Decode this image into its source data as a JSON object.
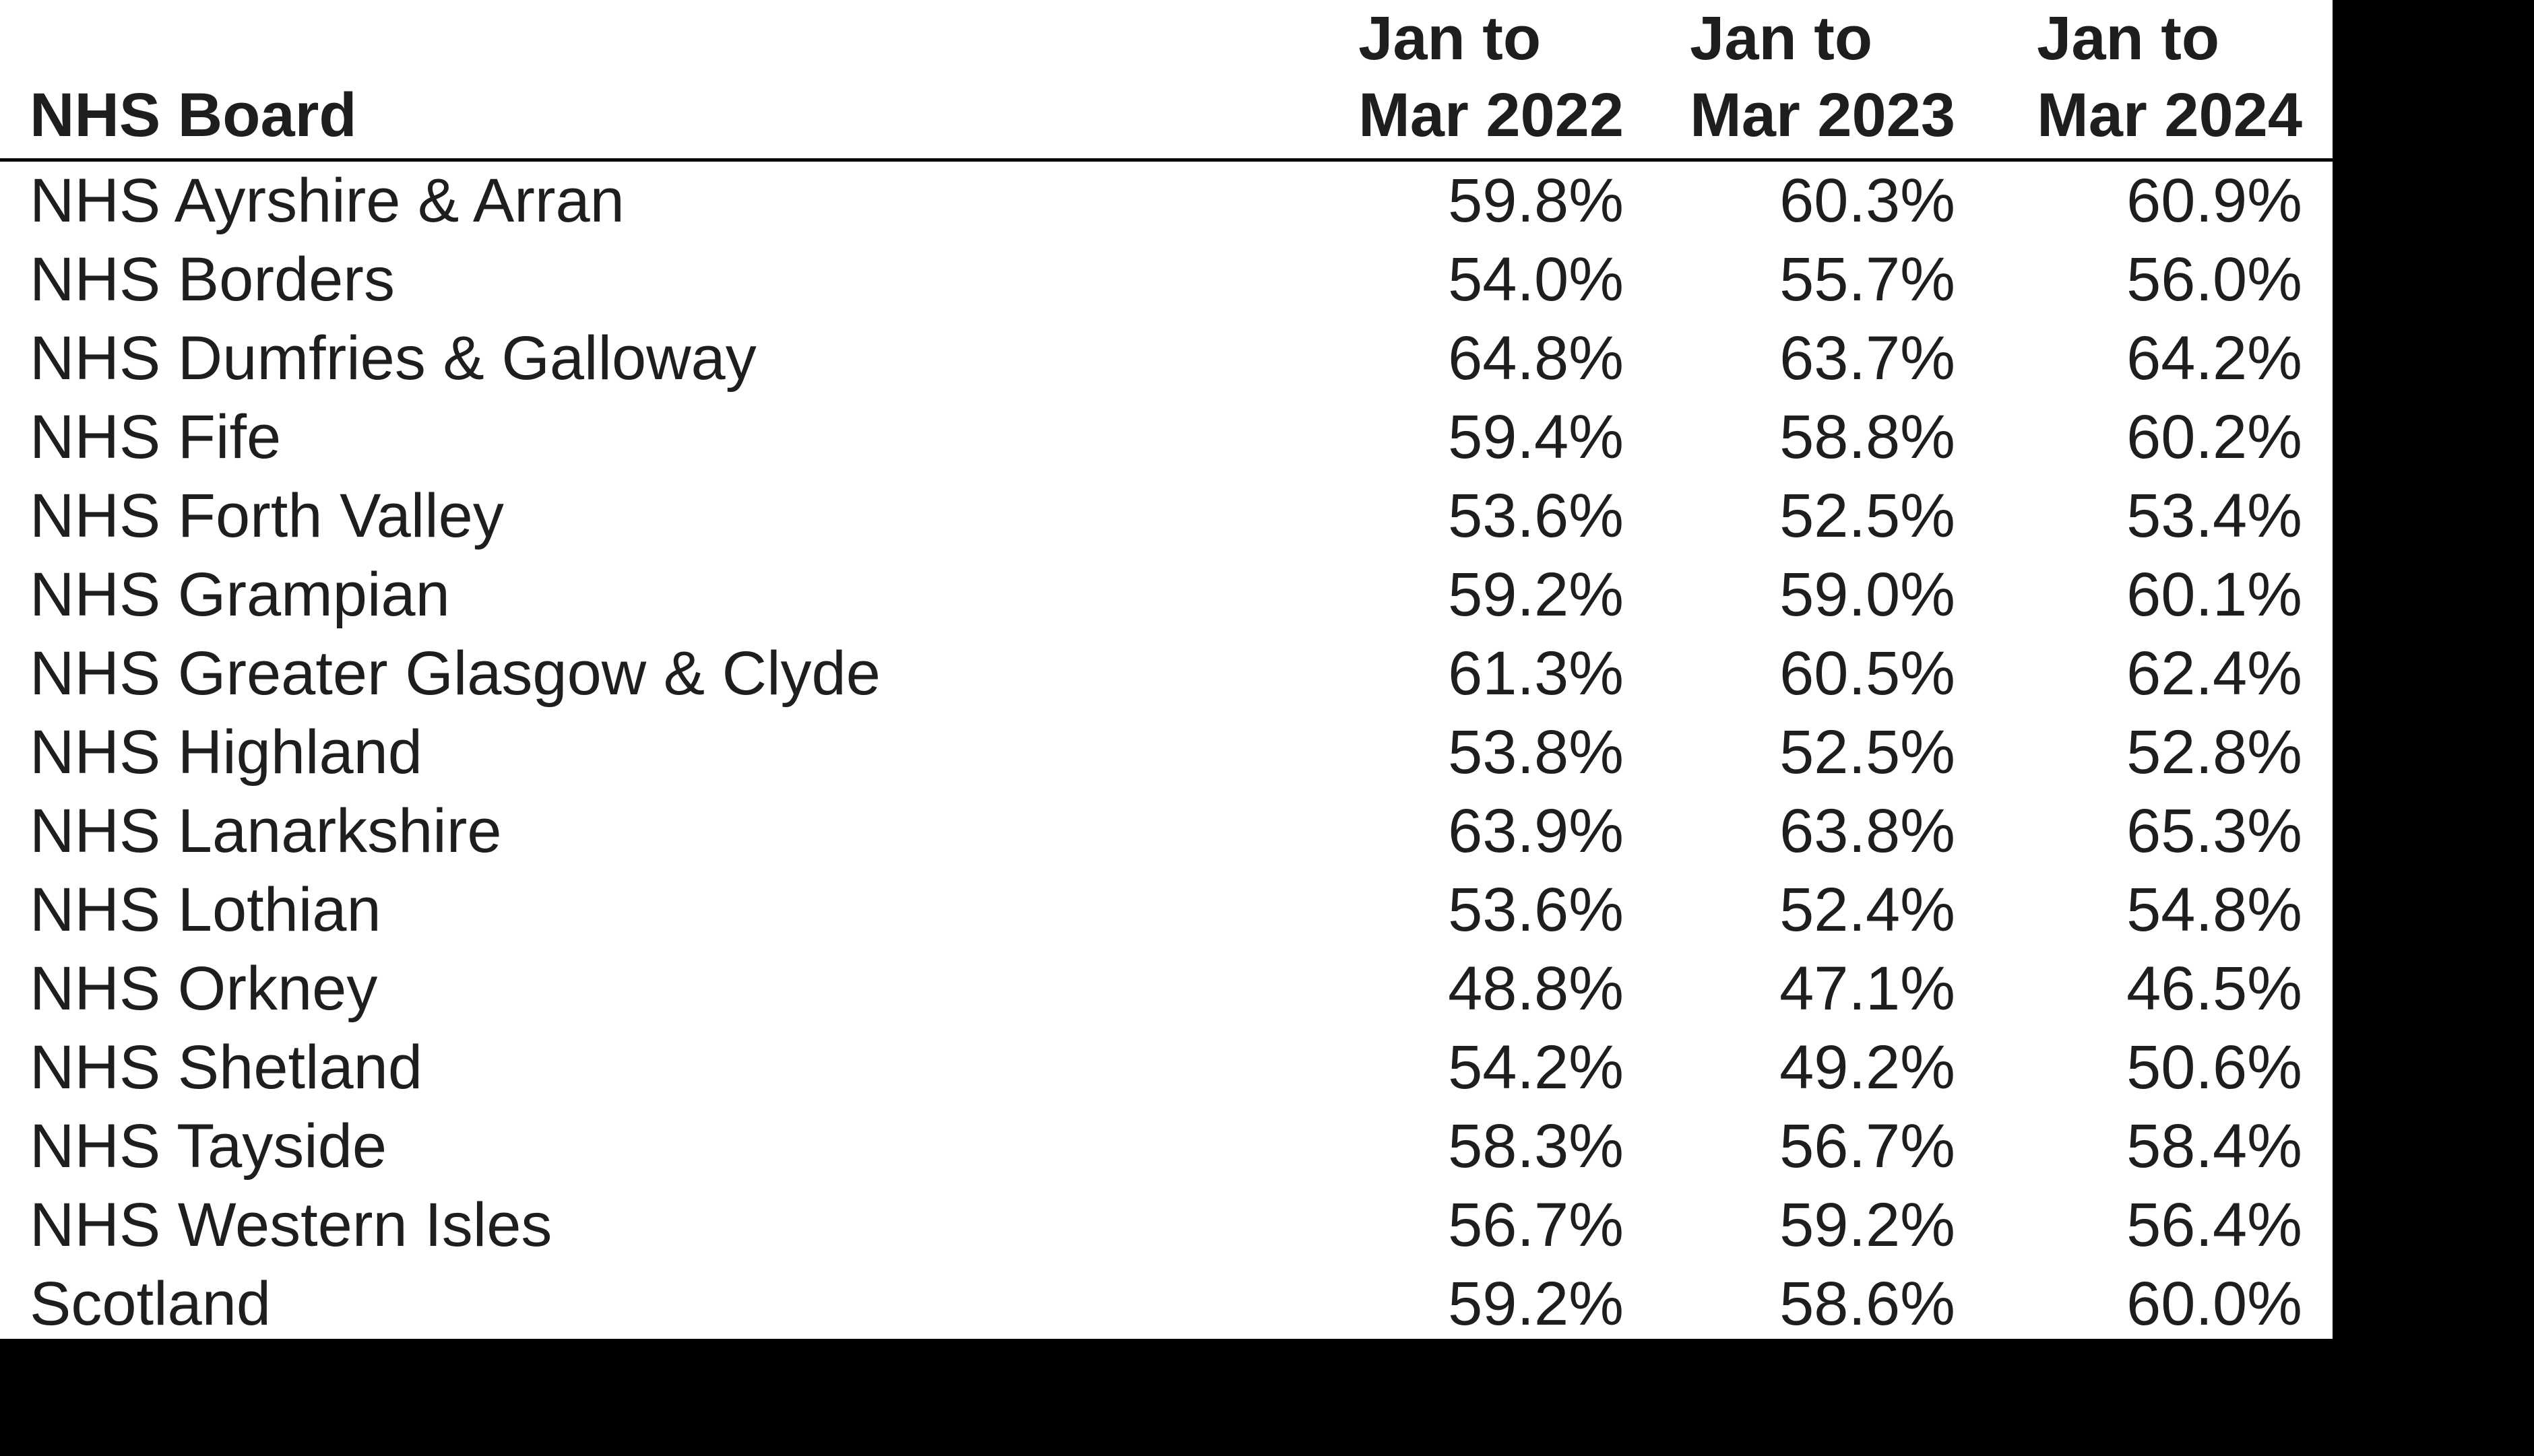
{
  "colors": {
    "panel_background": "#ffffff",
    "surround": "#000000",
    "text": "#1e1e1e",
    "header_rule": "#000000"
  },
  "table": {
    "header": {
      "board_label": "NHS Board",
      "period_columns": [
        {
          "line1": "Jan to",
          "line2": "Mar 2022"
        },
        {
          "line1": "Jan to",
          "line2": "Mar 2023"
        },
        {
          "line1": "Jan to",
          "line2": "Mar 2024"
        }
      ]
    },
    "rows": [
      {
        "board": "NHS Ayrshire & Arran",
        "values": [
          "59.8%",
          "60.3%",
          "60.9%"
        ]
      },
      {
        "board": "NHS Borders",
        "values": [
          "54.0%",
          "55.7%",
          "56.0%"
        ]
      },
      {
        "board": "NHS Dumfries & Galloway",
        "values": [
          "64.8%",
          "63.7%",
          "64.2%"
        ]
      },
      {
        "board": "NHS Fife",
        "values": [
          "59.4%",
          "58.8%",
          "60.2%"
        ]
      },
      {
        "board": "NHS Forth Valley",
        "values": [
          "53.6%",
          "52.5%",
          "53.4%"
        ]
      },
      {
        "board": "NHS Grampian",
        "values": [
          "59.2%",
          "59.0%",
          "60.1%"
        ]
      },
      {
        "board": "NHS Greater Glasgow & Clyde",
        "values": [
          "61.3%",
          "60.5%",
          "62.4%"
        ]
      },
      {
        "board": "NHS Highland",
        "values": [
          "53.8%",
          "52.5%",
          "52.8%"
        ]
      },
      {
        "board": "NHS Lanarkshire",
        "values": [
          "63.9%",
          "63.8%",
          "65.3%"
        ]
      },
      {
        "board": "NHS Lothian",
        "values": [
          "53.6%",
          "52.4%",
          "54.8%"
        ]
      },
      {
        "board": "NHS Orkney",
        "values": [
          "48.8%",
          "47.1%",
          "46.5%"
        ]
      },
      {
        "board": "NHS Shetland",
        "values": [
          "54.2%",
          "49.2%",
          "50.6%"
        ]
      },
      {
        "board": "NHS Tayside",
        "values": [
          "58.3%",
          "56.7%",
          "58.4%"
        ]
      },
      {
        "board": "NHS Western Isles",
        "values": [
          "56.7%",
          "59.2%",
          "56.4%"
        ]
      },
      {
        "board": "Scotland",
        "values": [
          "59.2%",
          "58.6%",
          "60.0%"
        ]
      }
    ]
  },
  "chart_data": {
    "type": "table",
    "title": "",
    "unit": "percent",
    "columns": [
      "NHS Board",
      "Jan to Mar 2022",
      "Jan to Mar 2023",
      "Jan to Mar 2024"
    ],
    "categories": [
      "NHS Ayrshire & Arran",
      "NHS Borders",
      "NHS Dumfries & Galloway",
      "NHS Fife",
      "NHS Forth Valley",
      "NHS Grampian",
      "NHS Greater Glasgow & Clyde",
      "NHS Highland",
      "NHS Lanarkshire",
      "NHS Lothian",
      "NHS Orkney",
      "NHS Shetland",
      "NHS Tayside",
      "NHS Western Isles",
      "Scotland"
    ],
    "series": [
      {
        "name": "Jan to Mar 2022",
        "values": [
          59.8,
          54.0,
          64.8,
          59.4,
          53.6,
          59.2,
          61.3,
          53.8,
          63.9,
          53.6,
          48.8,
          54.2,
          58.3,
          56.7,
          59.2
        ]
      },
      {
        "name": "Jan to Mar 2023",
        "values": [
          60.3,
          55.7,
          63.7,
          58.8,
          52.5,
          59.0,
          60.5,
          52.5,
          63.8,
          52.4,
          47.1,
          49.2,
          56.7,
          59.2,
          58.6
        ]
      },
      {
        "name": "Jan to Mar 2024",
        "values": [
          60.9,
          56.0,
          64.2,
          60.2,
          53.4,
          60.1,
          62.4,
          52.8,
          65.3,
          54.8,
          46.5,
          50.6,
          58.4,
          56.4,
          60.0
        ]
      }
    ]
  }
}
